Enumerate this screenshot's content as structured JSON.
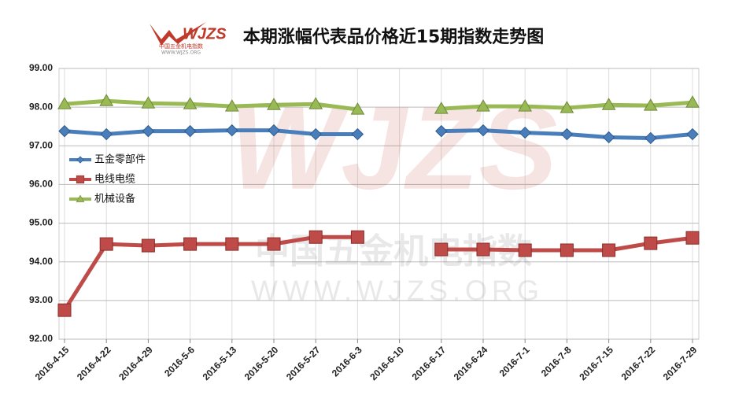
{
  "branding": {
    "logo": "WJZS",
    "logo_sub": "中国五金机电指数",
    "logo_url": "WWW.WJZS.ORG",
    "watermark": "WJZS",
    "watermark_sub": "中国五金机电指数",
    "watermark_url": "WWW.WJZS.ORG"
  },
  "chart_data": {
    "type": "line",
    "title": "本期涨幅代表品价格近15期指数走势图",
    "categories": [
      "2016-4-15",
      "2016-4-22",
      "2016-4-29",
      "2016-5-6",
      "2016-5-13",
      "2016-5-20",
      "2016-5-27",
      "2016-6-3",
      "2016-6-10",
      "2016-6-17",
      "2016-6-24",
      "2016-7-1",
      "2016-7-8",
      "2016-7-15",
      "2016-7-22",
      "2016-7-29"
    ],
    "series": [
      {
        "name": "五金零部件",
        "color": "#4a7ebb",
        "marker": "diamond",
        "values": [
          97.38,
          97.3,
          97.38,
          97.38,
          97.4,
          97.4,
          97.3,
          97.3,
          null,
          97.38,
          97.4,
          97.34,
          97.3,
          97.22,
          97.2,
          97.3
        ]
      },
      {
        "name": "电线电缆",
        "color": "#be4b48",
        "marker": "square",
        "values": [
          92.75,
          94.46,
          94.42,
          94.46,
          94.46,
          94.46,
          94.64,
          94.64,
          null,
          94.32,
          94.32,
          94.3,
          94.3,
          94.3,
          94.48,
          94.62
        ]
      },
      {
        "name": "机械设备",
        "color": "#98b954",
        "marker": "triangle",
        "values": [
          98.08,
          98.16,
          98.1,
          98.08,
          98.02,
          98.06,
          98.08,
          97.94,
          null,
          97.96,
          98.02,
          98.02,
          97.98,
          98.06,
          98.04,
          98.12
        ]
      }
    ],
    "ylim": [
      92,
      99
    ],
    "yticks": [
      {
        "value": 92,
        "label": "92.00"
      },
      {
        "value": 93,
        "label": "93.00"
      },
      {
        "value": 94,
        "label": "94.00"
      },
      {
        "value": 95,
        "label": "95.00"
      },
      {
        "value": 96,
        "label": "96.00"
      },
      {
        "value": 97,
        "label": "97.00"
      },
      {
        "value": 98,
        "label": "98.00"
      },
      {
        "value": 99,
        "label": "99.00"
      }
    ],
    "grid": true,
    "legend": "left"
  }
}
